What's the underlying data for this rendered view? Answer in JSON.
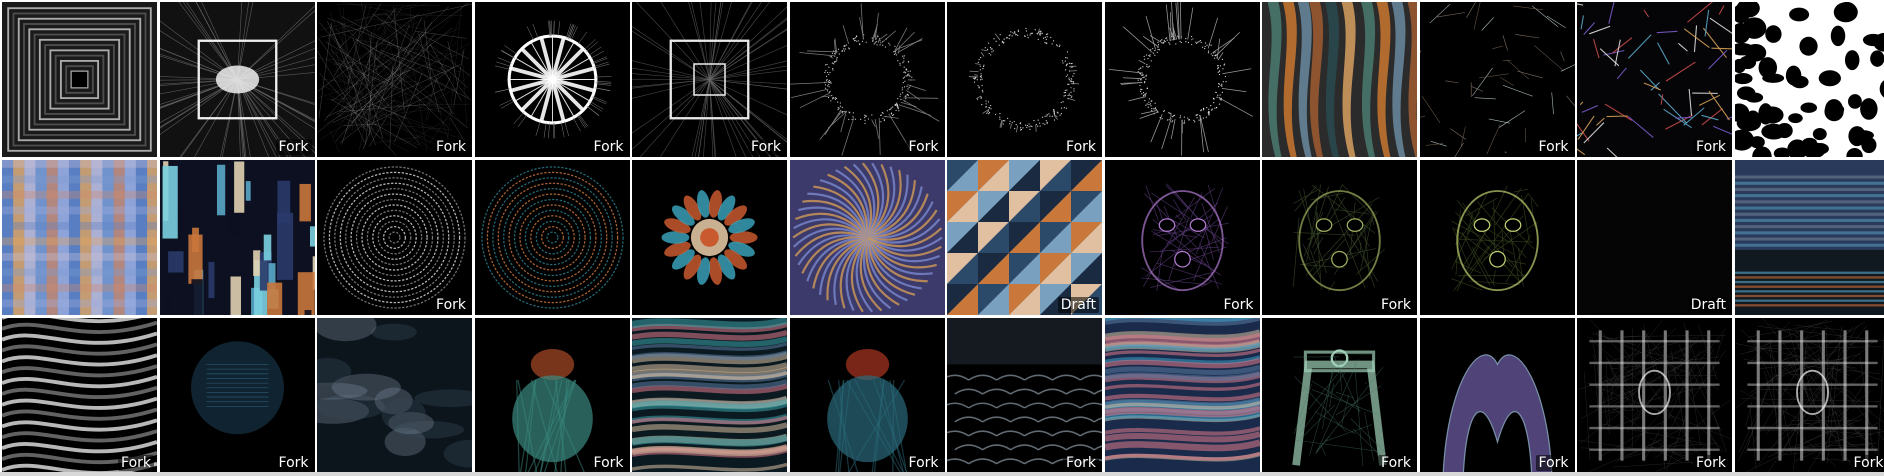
{
  "gallery": {
    "rows": [
      [
        {
          "theme": "tunnel",
          "badge": "",
          "colors": [
            "#1a1a1a",
            "#5a5a5a",
            "#d0d0d0"
          ]
        },
        {
          "theme": "lens",
          "badge": "Fork",
          "colors": [
            "#111",
            "#777",
            "#f0f0f0"
          ]
        },
        {
          "theme": "noise",
          "badge": "Fork",
          "colors": [
            "#000",
            "#555",
            "#cfcfcf"
          ]
        },
        {
          "theme": "spokes",
          "badge": "Fork",
          "colors": [
            "#000",
            "#888",
            "#ffffff"
          ]
        },
        {
          "theme": "square",
          "badge": "Fork",
          "colors": [
            "#000",
            "#666",
            "#e8e8e8"
          ]
        },
        {
          "theme": "burst",
          "badge": "Fork",
          "colors": [
            "#000",
            "#888",
            "#f2f2f2"
          ]
        },
        {
          "theme": "ring",
          "badge": "Fork",
          "colors": [
            "#000",
            "#999",
            "#ffffff"
          ]
        },
        {
          "theme": "ringburst",
          "badge": "",
          "colors": [
            "#000",
            "#aaa",
            "#ffffff"
          ]
        },
        {
          "theme": "ribbons",
          "badge": "",
          "colors": [
            "#2b2b2b",
            "#5aa0a0",
            "#c9772f"
          ]
        },
        {
          "theme": "lines",
          "badge": "Fork",
          "colors": [
            "#000",
            "#6a5a4a",
            "#b8c8c8"
          ]
        },
        {
          "theme": "colorlines",
          "badge": "Fork",
          "colors": [
            "#050507",
            "#5aa7c8",
            "#d39f56"
          ]
        },
        {
          "theme": "spots",
          "badge": "",
          "colors": [
            "#ffffff",
            "#000000",
            "#000000"
          ]
        }
      ],
      [
        {
          "theme": "plaid",
          "badge": "",
          "colors": [
            "#5a7fc2",
            "#e8a65a",
            "#c8c0d8"
          ]
        },
        {
          "theme": "glitch",
          "badge": "",
          "colors": [
            "#0c1020",
            "#5aa7c8",
            "#c9773b"
          ]
        },
        {
          "theme": "concentric",
          "badge": "Fork",
          "colors": [
            "#000",
            "#888",
            "#d8d8d8"
          ]
        },
        {
          "theme": "concentric",
          "badge": "",
          "colors": [
            "#000",
            "#2c7b8a",
            "#c9773b"
          ]
        },
        {
          "theme": "flower",
          "badge": "",
          "colors": [
            "#000",
            "#3aa0b8",
            "#c9592f"
          ]
        },
        {
          "theme": "swirl",
          "badge": "",
          "colors": [
            "#3c3a6a",
            "#d19b57",
            "#7a8ad0"
          ]
        },
        {
          "theme": "triangles",
          "badge": "Draft",
          "colors": [
            "#2b4a6a",
            "#c9773b",
            "#7aa0c0"
          ]
        },
        {
          "theme": "face",
          "badge": "Fork",
          "colors": [
            "#000",
            "#5a3a7a",
            "#b07ad0"
          ]
        },
        {
          "theme": "face",
          "badge": "Fork",
          "colors": [
            "#000",
            "#3a4a2a",
            "#a0b060"
          ]
        },
        {
          "theme": "face",
          "badge": "",
          "colors": [
            "#000",
            "#3a4a20",
            "#c0d070"
          ]
        },
        {
          "theme": "black",
          "badge": "Draft",
          "colors": [
            "#050505",
            "#0a0a0a",
            "#111"
          ]
        },
        {
          "theme": "horizon",
          "badge": "",
          "colors": [
            "#2a3a5a",
            "#5aa7c8",
            "#d0703a"
          ]
        }
      ],
      [
        {
          "theme": "waves",
          "badge": "Fork",
          "colors": [
            "#000",
            "#7a7a7a",
            "#e6e6e6"
          ]
        },
        {
          "theme": "glow",
          "badge": "Fork",
          "colors": [
            "#000",
            "#1a3a50",
            "#3a7ea0"
          ]
        },
        {
          "theme": "clouds",
          "badge": "",
          "colors": [
            "#0c141c",
            "#3a4a5a",
            "#7a8a9a"
          ]
        },
        {
          "theme": "figure",
          "badge": "Fork",
          "colors": [
            "#000",
            "#3a8a80",
            "#c9592f"
          ]
        },
        {
          "theme": "streaks",
          "badge": "",
          "colors": [
            "#0a1a20",
            "#3aa0a8",
            "#d8c0a0"
          ]
        },
        {
          "theme": "figure",
          "badge": "Fork",
          "colors": [
            "#000",
            "#2a6a7a",
            "#c9402a"
          ]
        },
        {
          "theme": "scales",
          "badge": "Fork",
          "colors": [
            "#000",
            "#3a4a5a",
            "#a0b0c0"
          ]
        },
        {
          "theme": "streaks",
          "badge": "",
          "colors": [
            "#1a2a4a",
            "#3aa0c8",
            "#e07a8a"
          ]
        },
        {
          "theme": "arch",
          "badge": "Fork",
          "colors": [
            "#000",
            "#4a7a6a",
            "#a0d0b8"
          ]
        },
        {
          "theme": "arches",
          "badge": "Fork",
          "colors": [
            "#000",
            "#6a5aa0",
            "#a0c0e0"
          ]
        },
        {
          "theme": "lattice",
          "badge": "Fork",
          "colors": [
            "#000",
            "#6a6a6a",
            "#f0f0f0"
          ]
        },
        {
          "theme": "lattice",
          "badge": "Fork",
          "colors": [
            "#000",
            "#707070",
            "#f4f4f4"
          ]
        }
      ]
    ]
  }
}
